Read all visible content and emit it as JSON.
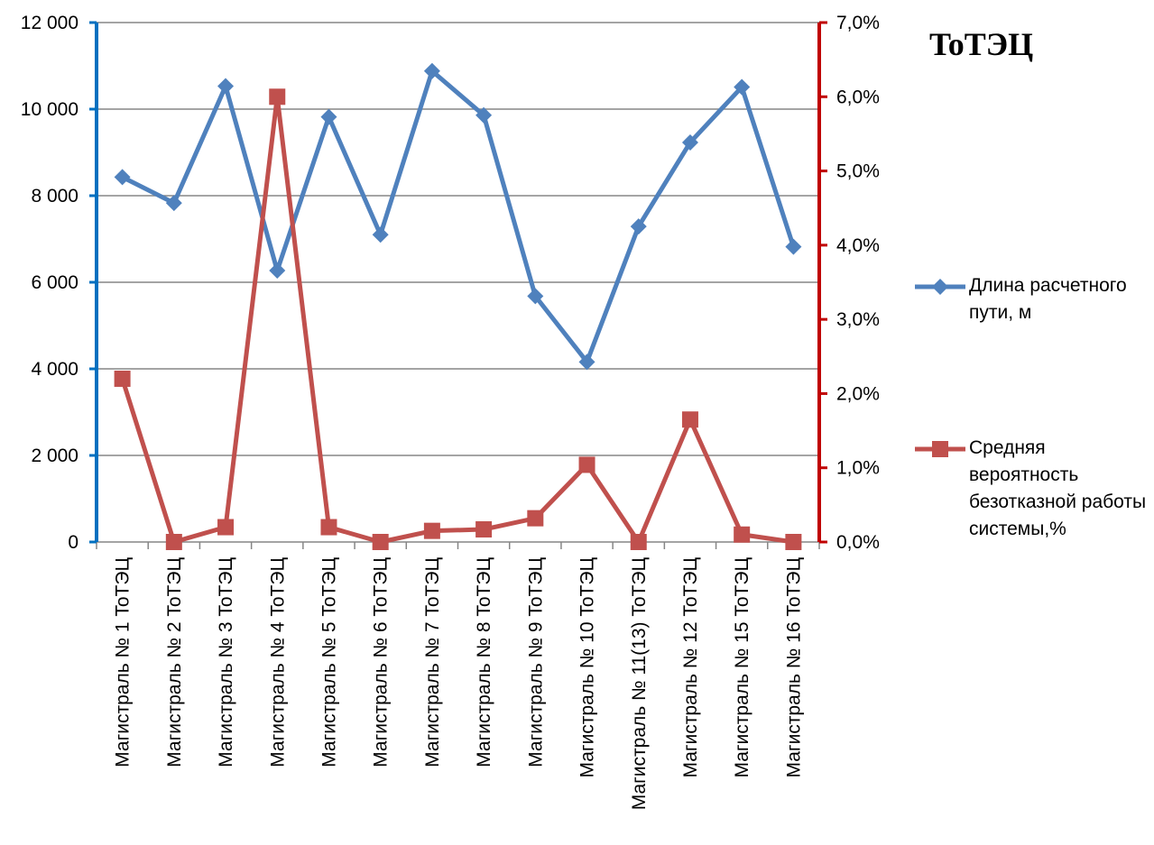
{
  "chart_data": {
    "type": "line",
    "title": "ToТЭЦ",
    "categories": [
      "Магистраль № 1 ToТЭЦ",
      "Магистраль № 2 ToТЭЦ",
      "Магистраль № 3 ToТЭЦ",
      "Магистраль № 4 ToТЭЦ",
      "Магистраль № 5 ToТЭЦ",
      "Магистраль № 6 ToТЭЦ",
      "Магистраль № 7 ToТЭЦ",
      "Магистраль № 8 ToТЭЦ",
      "Магистраль № 9 ToТЭЦ",
      "Магистраль № 10 ToТЭЦ",
      "Магистраль № 11(13) ToТЭЦ",
      "Магистраль № 12 ToТЭЦ",
      "Магистраль № 15 ToТЭЦ",
      "Магистраль № 16 ToТЭЦ"
    ],
    "series": [
      {
        "name": "Длина расчетного пути, м",
        "axis": "left",
        "color": "#4f81bd",
        "marker": "diamond",
        "values": [
          8430,
          7830,
          10530,
          6270,
          9820,
          7100,
          10880,
          9860,
          5680,
          4160,
          7290,
          9230,
          10510,
          6820
        ]
      },
      {
        "name": "Средняя вероятность безотказной работы системы,%",
        "axis": "right",
        "color": "#c0504d",
        "marker": "square",
        "values": [
          2.2,
          0.0,
          0.2,
          6.0,
          0.2,
          0.0,
          0.15,
          0.17,
          0.32,
          1.04,
          0.0,
          1.65,
          0.1,
          0.0
        ]
      }
    ],
    "y_left": {
      "range": [
        0,
        12000
      ],
      "ticks": [
        0,
        2000,
        4000,
        6000,
        8000,
        10000,
        12000
      ],
      "tick_labels": [
        "0",
        "2 000",
        "4 000",
        "6 000",
        "8 000",
        "10 000",
        "12 000"
      ],
      "axis_color": "#0070c0"
    },
    "y_right": {
      "range": [
        0,
        7
      ],
      "ticks": [
        0,
        1,
        2,
        3,
        4,
        5,
        6,
        7
      ],
      "tick_labels": [
        "0,0%",
        "1,0%",
        "2,0%",
        "3,0%",
        "4,0%",
        "5,0%",
        "6,0%",
        "7,0%"
      ],
      "axis_color": "#c00000"
    },
    "grid": true,
    "legend_position": "right"
  }
}
